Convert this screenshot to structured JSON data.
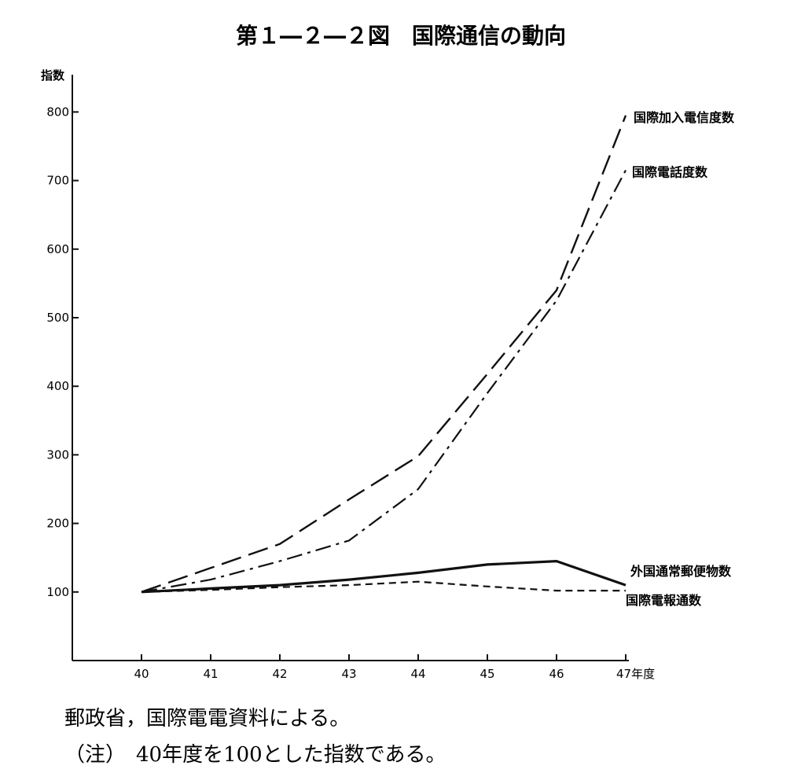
{
  "chart_data": {
    "type": "line",
    "title": "第１―２―２図　国際通信の動向",
    "ylabel": "指数",
    "xlabel": "",
    "x": [
      "40",
      "41",
      "42",
      "43",
      "44",
      "45",
      "46",
      "47年度"
    ],
    "ylim": [
      0,
      800
    ],
    "yticks": [
      "100",
      "200",
      "300",
      "400",
      "500",
      "600",
      "700",
      "800"
    ],
    "grid": false,
    "legend": "labels at line ends (right)",
    "series": [
      {
        "name": "国際加入電信度数",
        "style": "long-dash",
        "values": [
          100,
          135,
          170,
          235,
          298,
          418,
          540,
          795
        ]
      },
      {
        "name": "国際電話度数",
        "style": "dash-dot",
        "values": [
          100,
          118,
          145,
          175,
          250,
          390,
          525,
          715
        ]
      },
      {
        "name": "外国通常郵便物数",
        "style": "solid",
        "values": [
          100,
          105,
          110,
          118,
          128,
          140,
          145,
          110
        ]
      },
      {
        "name": "国際電報通数",
        "style": "short-dash",
        "values": [
          100,
          103,
          107,
          110,
          115,
          108,
          102,
          102
        ]
      }
    ]
  },
  "footer": {
    "source": "郵政省，国際電電資料による。",
    "note": "（注）　40年度を100とした指数である。"
  },
  "colors": {
    "ink": "#111111",
    "background": "#ffffff"
  }
}
